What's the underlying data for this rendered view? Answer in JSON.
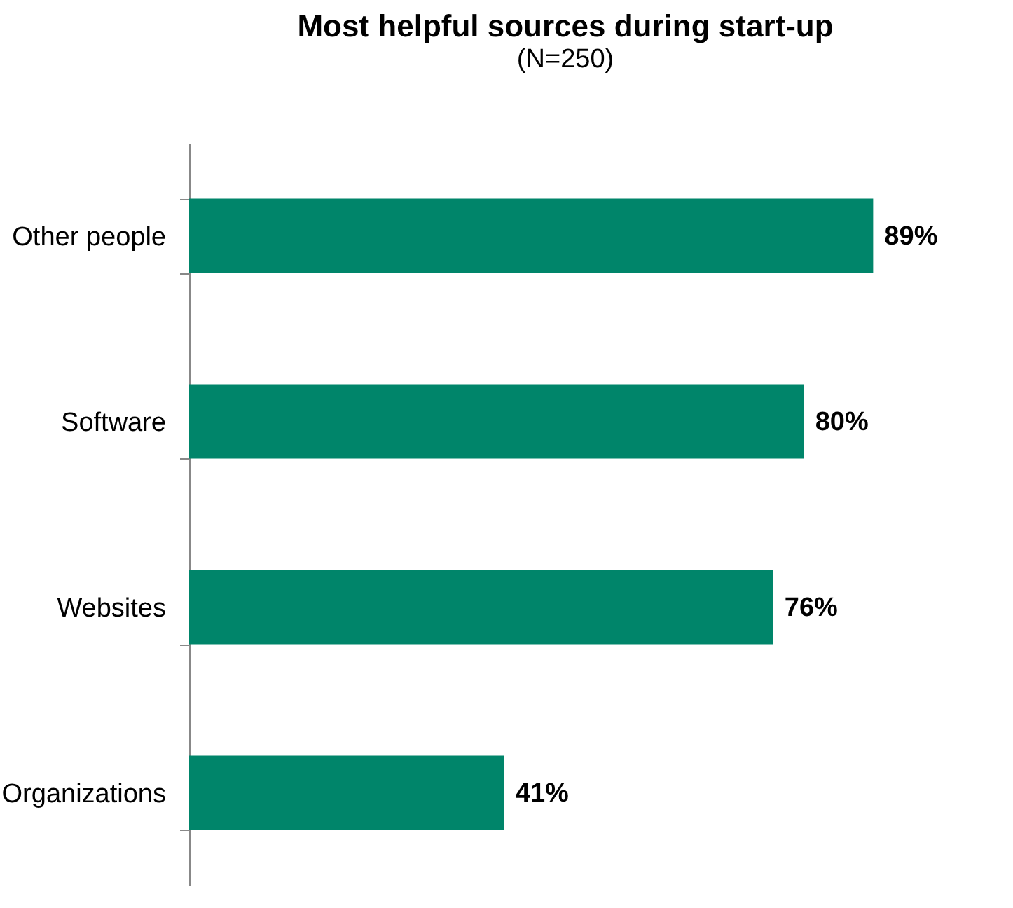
{
  "chart_data": {
    "type": "bar",
    "orientation": "horizontal",
    "title": "Most helpful sources during start-up",
    "subtitle": "(N=250)",
    "categories": [
      "Other people",
      "Software",
      "Websites",
      "Organizations"
    ],
    "values": [
      89,
      80,
      76,
      41
    ],
    "color": "#00856a",
    "value_labels": [
      "89%",
      "80%",
      "76%",
      "41%"
    ]
  }
}
